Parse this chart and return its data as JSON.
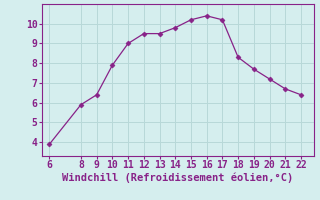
{
  "x": [
    6,
    8,
    9,
    10,
    11,
    12,
    13,
    14,
    15,
    16,
    17,
    18,
    19,
    20,
    21,
    22
  ],
  "y": [
    3.9,
    5.9,
    6.4,
    7.9,
    9.0,
    9.5,
    9.5,
    9.8,
    10.2,
    10.4,
    10.2,
    8.3,
    7.7,
    7.2,
    6.7,
    6.4
  ],
  "line_color": "#882288",
  "marker": "D",
  "marker_size": 2.5,
  "background_color": "#d5eeee",
  "grid_color": "#b8d8d8",
  "xlabel": "Windchill (Refroidissement éolien,°C)",
  "xlabel_color": "#882288",
  "xlabel_fontsize": 7.5,
  "tick_color": "#882288",
  "tick_fontsize": 7,
  "xlim": [
    5.5,
    22.8
  ],
  "ylim": [
    3.3,
    11.0
  ],
  "xticks": [
    6,
    8,
    9,
    10,
    11,
    12,
    13,
    14,
    15,
    16,
    17,
    18,
    19,
    20,
    21,
    22
  ],
  "yticks": [
    4,
    5,
    6,
    7,
    8,
    9,
    10
  ],
  "spine_color": "#882288"
}
